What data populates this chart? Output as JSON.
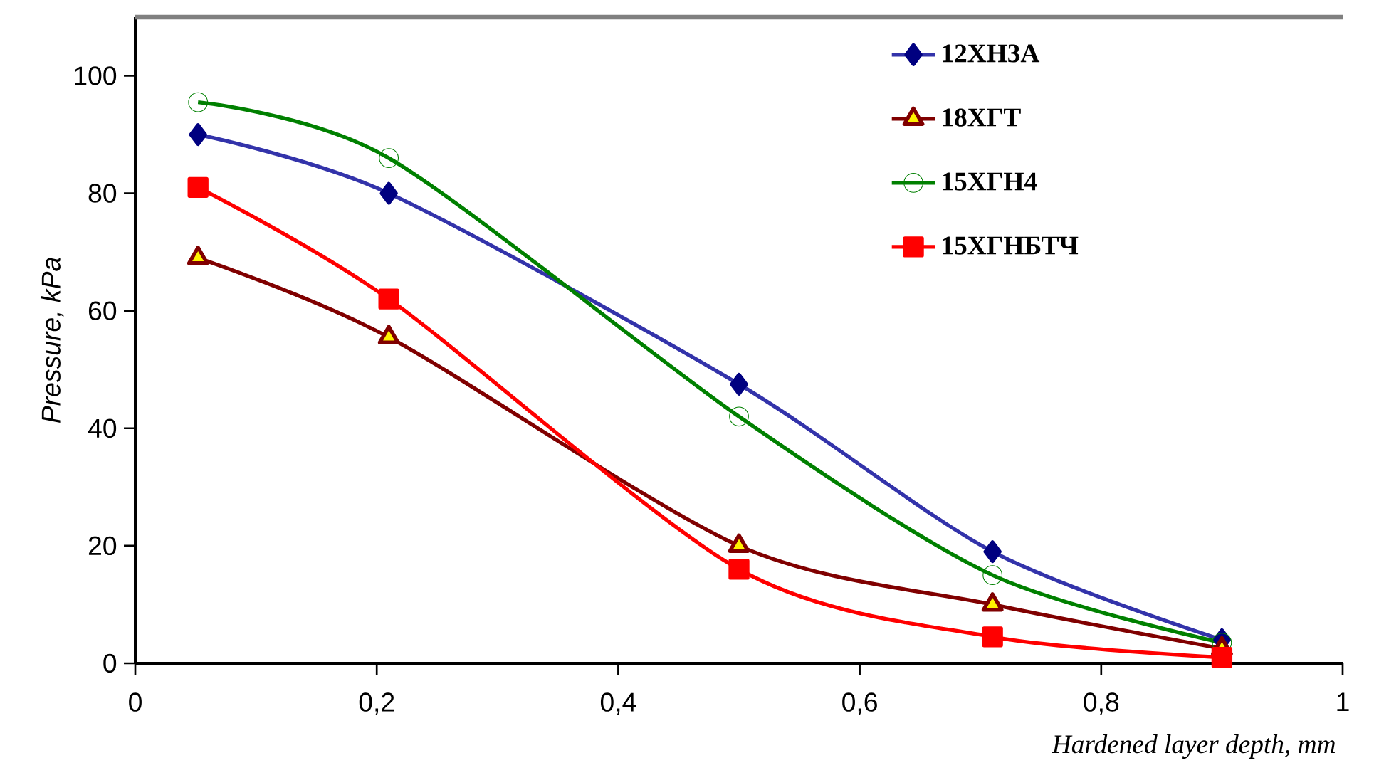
{
  "chart_data": {
    "type": "line",
    "xlabel": "Hardened layer depth, mm",
    "ylabel": "Pressure, kPa",
    "x": [
      0.052,
      0.21,
      0.5,
      0.71,
      0.9
    ],
    "series": [
      {
        "name": "12ХН3А",
        "color": "#3333aa",
        "marker": "diamond",
        "values": [
          90,
          80,
          47.5,
          19,
          4
        ]
      },
      {
        "name": "18ХГТ",
        "color": "#800000",
        "marker": "triangle",
        "values": [
          69,
          55.5,
          20,
          10,
          2.5
        ]
      },
      {
        "name": "15ХГН4",
        "color": "#008000",
        "marker": "circle",
        "values": [
          95.5,
          86,
          42,
          15,
          3.5
        ]
      },
      {
        "name": "15ХГНБТЧ",
        "color": "#ff0000",
        "marker": "square",
        "values": [
          81,
          62,
          16,
          4.5,
          1
        ]
      }
    ],
    "xlim": [
      0,
      1
    ],
    "ylim": [
      0,
      110
    ],
    "xticks": [
      0,
      {
        "value": 0.2,
        "label": "0,2"
      },
      {
        "value": 0.4,
        "label": "0,4"
      },
      {
        "value": 0.6,
        "label": "0,6"
      },
      {
        "value": 0.8,
        "label": "0,8"
      },
      1
    ],
    "yticks": [
      0,
      20,
      40,
      60,
      80,
      100
    ],
    "grid": false,
    "legend": "top right",
    "line_style": "solid"
  }
}
